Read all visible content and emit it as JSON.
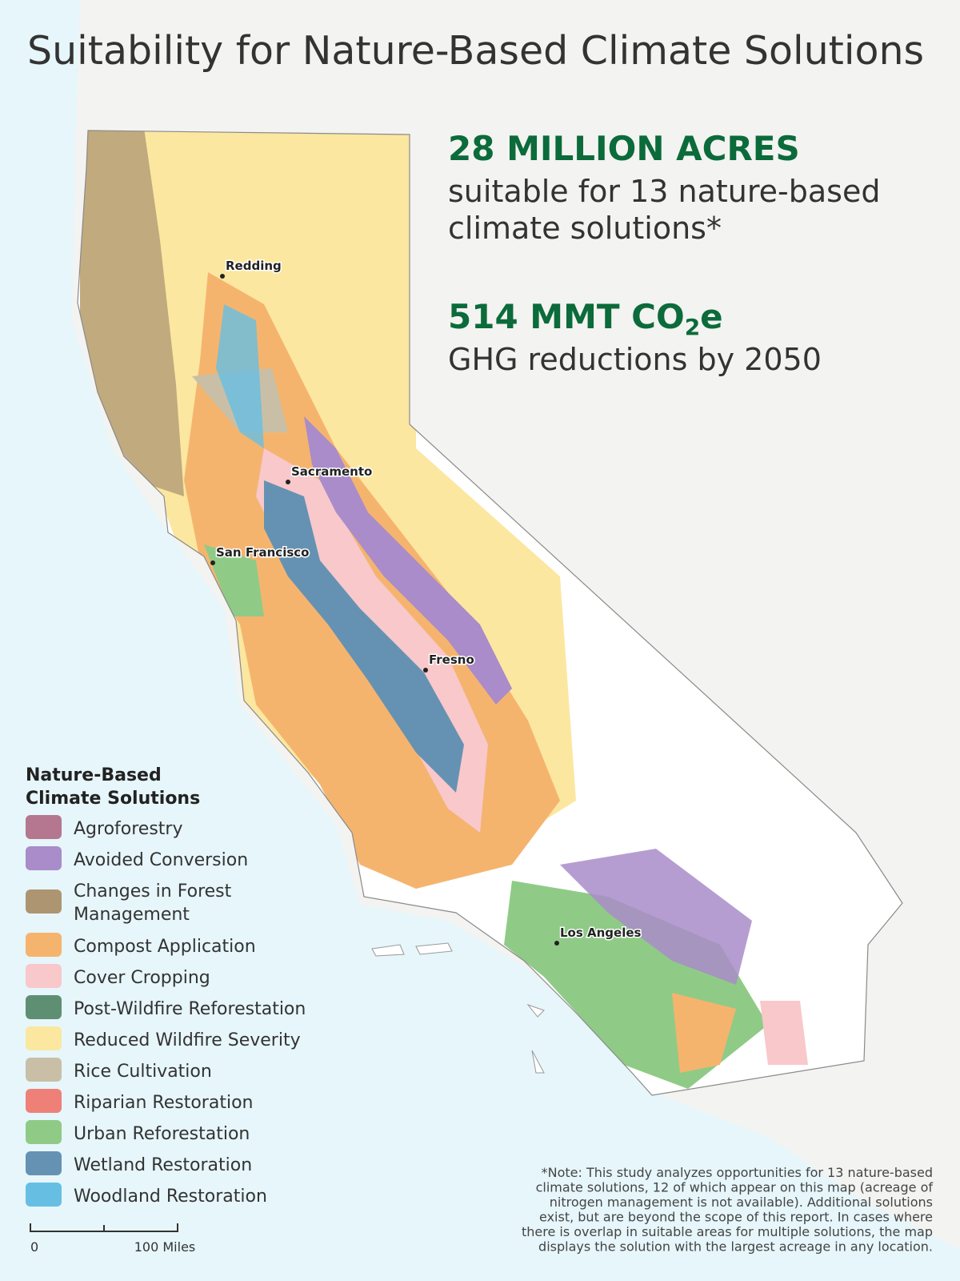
{
  "title": "Suitability for Nature-Based Climate Solutions",
  "stats": [
    {
      "headline": [
        "28 MILLION ACRES"
      ],
      "lines": [
        "suitable for 13 nature-based",
        "climate solutions*"
      ]
    },
    {
      "headline": [
        "514 MMT CO",
        "2",
        "e"
      ],
      "lines": [
        "GHG reductions by 2050"
      ]
    }
  ],
  "cities": [
    {
      "name": "Redding"
    },
    {
      "name": "Sacramento"
    },
    {
      "name": "San Francisco"
    },
    {
      "name": "Fresno"
    },
    {
      "name": "Los Angeles"
    }
  ],
  "legend": {
    "title_lines": [
      "Nature-Based",
      "Climate Solutions"
    ],
    "items": [
      {
        "label_lines": [
          "Agroforestry"
        ],
        "color": "#b5768f"
      },
      {
        "label_lines": [
          "Avoided Conversion"
        ],
        "color": "#a98cc9"
      },
      {
        "label_lines": [
          "Changes in Forest",
          "Management"
        ],
        "color": "#ad9572"
      },
      {
        "label_lines": [
          "Compost Application"
        ],
        "color": "#f5b46e"
      },
      {
        "label_lines": [
          "Cover Cropping"
        ],
        "color": "#f8c8cb"
      },
      {
        "label_lines": [
          "Post-Wildfire Reforestation"
        ],
        "color": "#5f8f72"
      },
      {
        "label_lines": [
          "Reduced Wildfire Severity"
        ],
        "color": "#fbe7a0"
      },
      {
        "label_lines": [
          "Rice Cultivation"
        ],
        "color": "#c9bfa7"
      },
      {
        "label_lines": [
          "Riparian Restoration"
        ],
        "color": "#ef8078"
      },
      {
        "label_lines": [
          "Urban Reforestation"
        ],
        "color": "#8fcb86"
      },
      {
        "label_lines": [
          "Wetland Restoration"
        ],
        "color": "#6592b3"
      },
      {
        "label_lines": [
          "Woodland Restoration"
        ],
        "color": "#66bfe3"
      }
    ]
  },
  "note_lines": [
    "*Note: This study analyzes opportunities for 13 nature-based",
    "climate solutions, 12 of which appear on this map (acreage of",
    "nitrogen management is not available). Additional solutions",
    "exist, but are beyond the scope of this report. In cases where",
    "there is overlap in suitable areas for multiple solutions, the map",
    "displays the solution with the largest acreage in any location."
  ],
  "scale_bar": {
    "labels": [
      "0",
      "100 Miles"
    ]
  }
}
